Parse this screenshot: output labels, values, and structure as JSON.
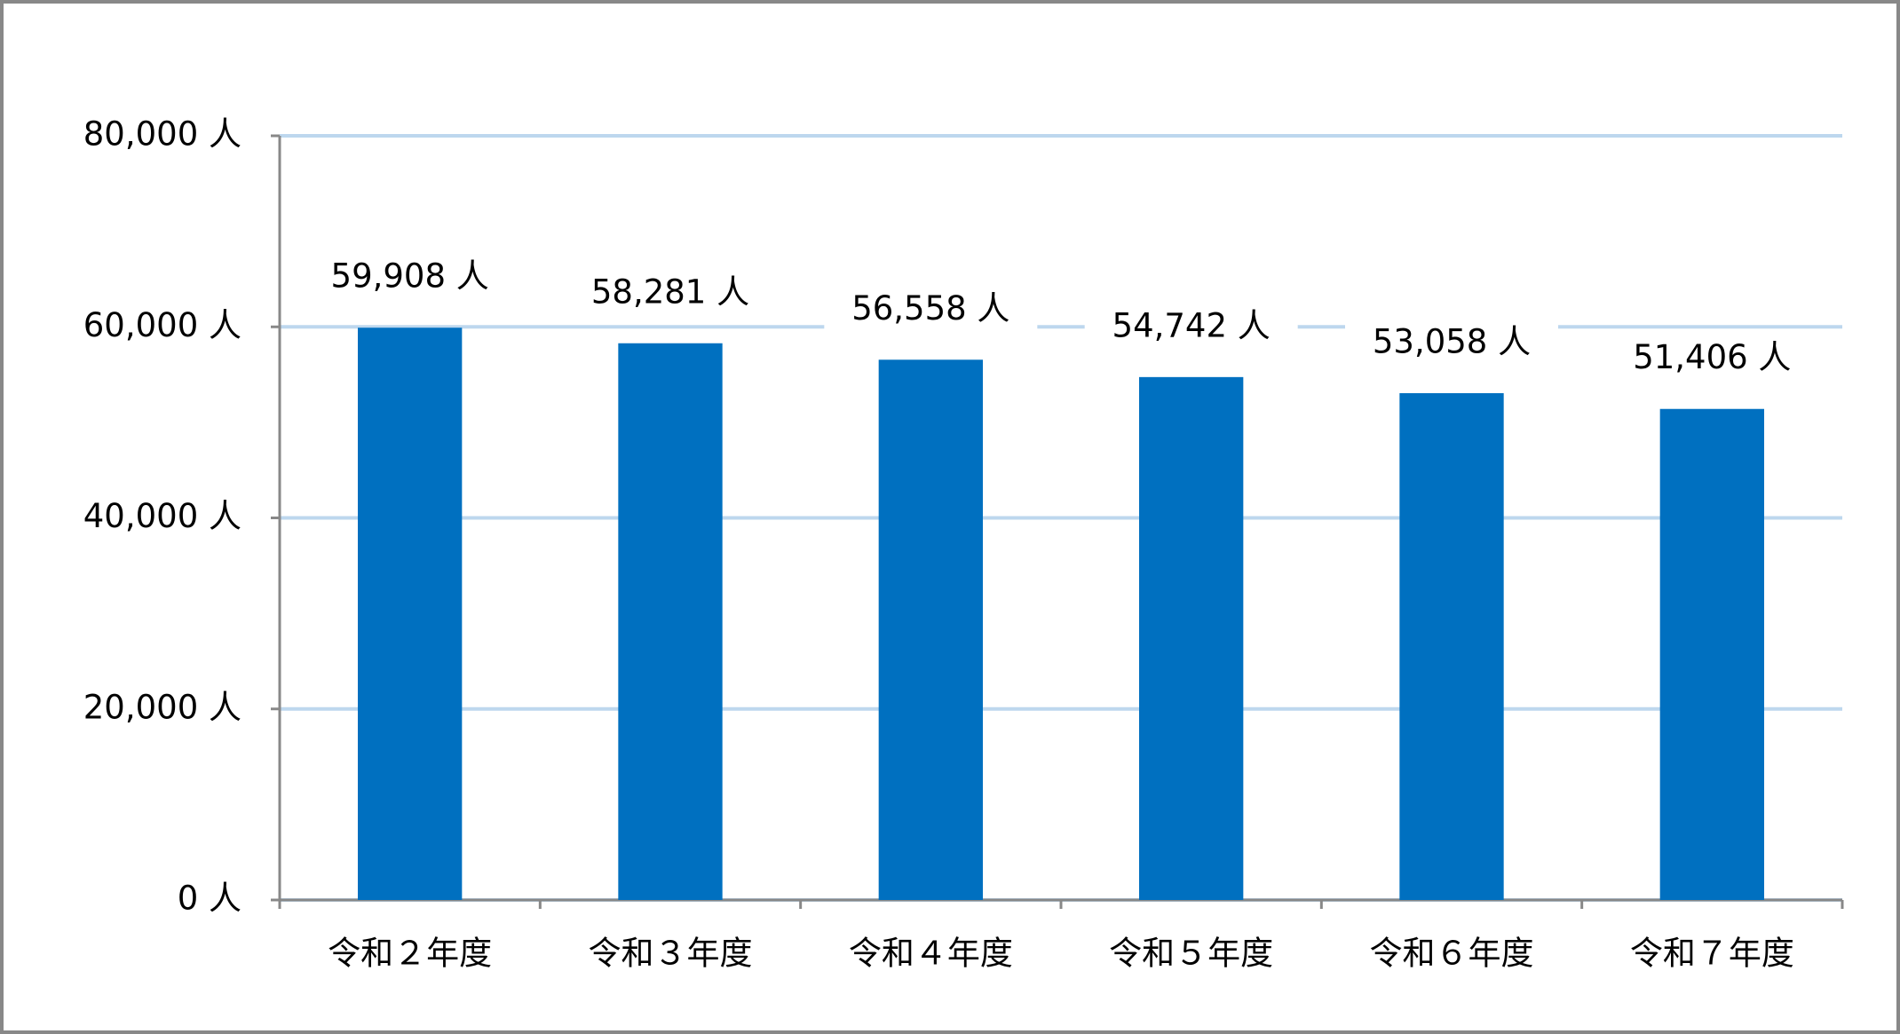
{
  "chart_data": {
    "type": "bar",
    "categories": [
      "令和２年度",
      "令和３年度",
      "令和４年度",
      "令和５年度",
      "令和６年度",
      "令和７年度"
    ],
    "values": [
      59908,
      58281,
      56558,
      54742,
      53058,
      51406
    ],
    "value_labels": [
      "59,908 人",
      "58,281 人",
      "56,558 人",
      "54,742 人",
      "53,058 人",
      "51,406 人"
    ],
    "color": "#0070c0",
    "ylim": [
      0,
      80000
    ],
    "yticks": [
      {
        "value": 0,
        "label": "0 人"
      },
      {
        "value": 20000,
        "label": "20,000 人"
      },
      {
        "value": 40000,
        "label": "40,000 人"
      },
      {
        "value": 60000,
        "label": "60,000 人"
      },
      {
        "value": 80000,
        "label": "80,000 人"
      }
    ],
    "grid": true
  }
}
